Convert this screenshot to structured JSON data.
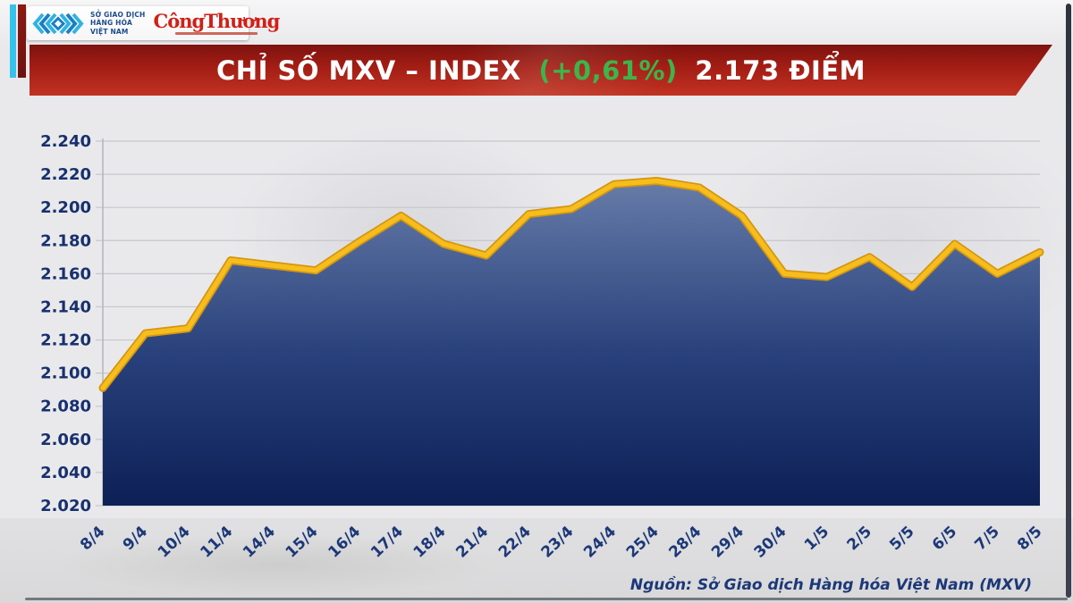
{
  "branding": {
    "exchange_lines": [
      "SỞ GIAO DỊCH",
      "HÀNG HÓA",
      "VIỆT NAM"
    ],
    "newspaper": "CôngThương"
  },
  "banner": {
    "title_main": "CHỈ SỐ MXV – INDEX",
    "change": "(+0,61%)",
    "points": "2.173 ĐIỂM",
    "colors": {
      "banner_red": "#a41e15",
      "change_green": "#3cb54a",
      "title_white": "#ffffff"
    }
  },
  "chart_data": {
    "type": "area",
    "title": "CHỈ SỐ MXV – INDEX (+0,61%) 2.173 ĐIỂM",
    "x_labels": [
      "8/4",
      "9/4",
      "10/4",
      "11/4",
      "14/4",
      "15/4",
      "16/4",
      "17/4",
      "18/4",
      "21/4",
      "22/4",
      "23/4",
      "24/4",
      "25/4",
      "28/4",
      "29/4",
      "30/4",
      "1/5",
      "2/5",
      "5/5",
      "6/5",
      "7/5",
      "8/5"
    ],
    "values": [
      2.091,
      2.124,
      2.127,
      2.168,
      2.165,
      2.162,
      2.179,
      2.195,
      2.178,
      2.171,
      2.196,
      2.199,
      2.214,
      2.216,
      2.212,
      2.195,
      2.16,
      2.158,
      2.17,
      2.152,
      2.178,
      2.16,
      2.173
    ],
    "ylim": [
      2.02,
      2.24
    ],
    "yticks": [
      2.24,
      2.22,
      2.2,
      2.18,
      2.16,
      2.14,
      2.12,
      2.1,
      2.08,
      2.06,
      2.04,
      2.02
    ],
    "ytick_labels": [
      "2.240",
      "2.220",
      "2.200",
      "2.180",
      "2.160",
      "2.140",
      "2.120",
      "2.100",
      "2.080",
      "2.060",
      "2.040",
      "2.020"
    ],
    "grid": true,
    "legend": "none",
    "colors": {
      "line": "#f6bd1d",
      "line_edge": "#d4960f",
      "fill_top": "#6b7ea8",
      "fill_mid": "#28407b",
      "fill_bottom": "#0d2056",
      "gridline": "#c7c7cb",
      "axis": "#b2b5bc",
      "tick_label": "#17306d"
    }
  },
  "footer": {
    "source": "Nguồn: Sở Giao dịch Hàng hóa Việt Nam (MXV)"
  }
}
